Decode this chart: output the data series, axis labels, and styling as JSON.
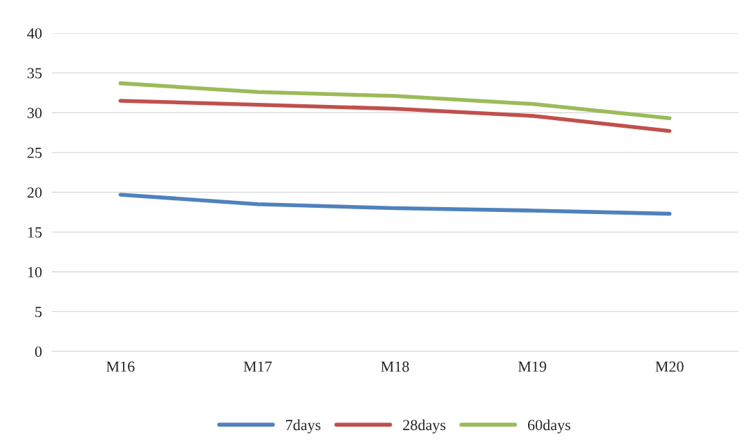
{
  "chart_data": {
    "type": "line",
    "categories": [
      "M16",
      "M17",
      "M18",
      "M19",
      "M20"
    ],
    "series": [
      {
        "name": "7days",
        "color": "#4f81bd",
        "values": [
          19.7,
          18.5,
          18.0,
          17.7,
          17.3
        ]
      },
      {
        "name": "28days",
        "color": "#c0504d",
        "values": [
          31.5,
          31.0,
          30.5,
          29.6,
          27.7
        ]
      },
      {
        "name": "60days",
        "color": "#9bbb59",
        "values": [
          33.7,
          32.6,
          32.1,
          31.1,
          29.3
        ]
      }
    ],
    "ylim": [
      0,
      40
    ],
    "yticks": [
      0,
      5,
      10,
      15,
      20,
      25,
      30,
      35,
      40
    ],
    "grid": "y",
    "legend": "bottom",
    "marker": "none",
    "line_style": "solid"
  }
}
